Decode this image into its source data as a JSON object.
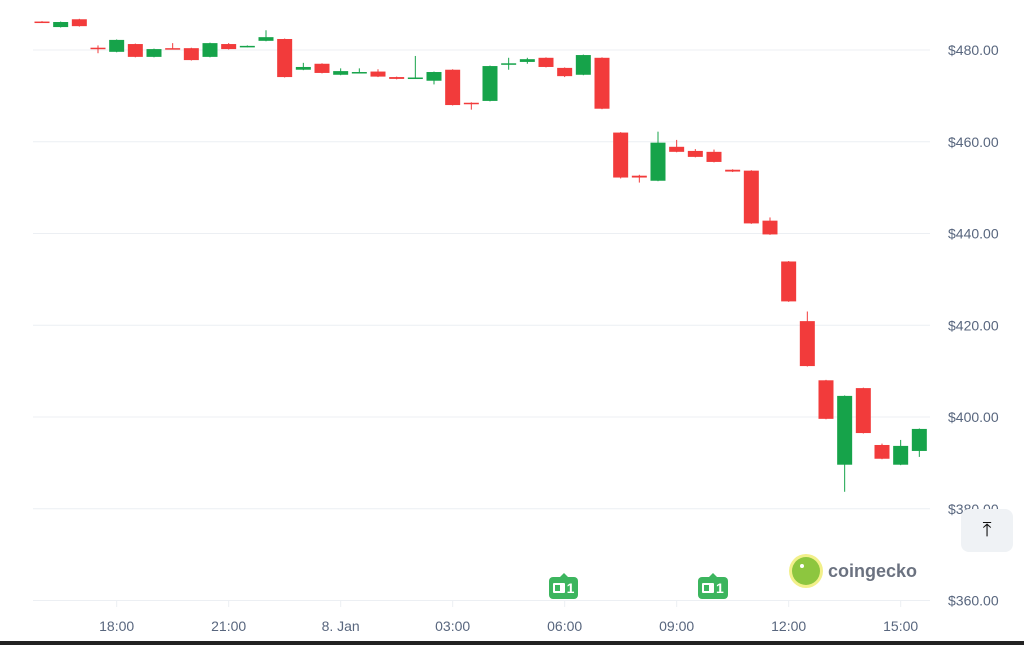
{
  "chart_data": {
    "type": "candlestick",
    "interval": "30m",
    "y_tick_labels": [
      "$480.00",
      "$460.00",
      "$440.00",
      "$420.00",
      "$400.00",
      "$380.00",
      "$360.00"
    ],
    "y_ticks": [
      480,
      460,
      440,
      420,
      400,
      380,
      360
    ],
    "ylim": [
      358,
      490
    ],
    "x_tick_labels": [
      {
        "label": "18:00",
        "time": "18:00"
      },
      {
        "label": "21:00",
        "time": "21:00"
      },
      {
        "label": "8. Jan",
        "time": "00:00"
      },
      {
        "label": "03:00",
        "time": "03:00"
      },
      {
        "label": "06:00",
        "time": "06:00"
      },
      {
        "label": "09:00",
        "time": "09:00"
      },
      {
        "label": "12:00",
        "time": "12:00"
      },
      {
        "label": "15:00",
        "time": "15:00"
      }
    ],
    "grid": true,
    "colors": {
      "up": "#16a34a",
      "down": "#f23b3b",
      "grid": "#eceff3"
    },
    "candles": [
      {
        "t": "16:00",
        "o": 486.2,
        "h": 486.3,
        "l": 485.9,
        "c": 486.0
      },
      {
        "t": "16:30",
        "o": 485.0,
        "h": 486.2,
        "l": 484.9,
        "c": 486.1
      },
      {
        "t": "17:00",
        "o": 486.7,
        "h": 486.8,
        "l": 485.1,
        "c": 485.2
      },
      {
        "t": "17:30",
        "o": 480.5,
        "h": 481.0,
        "l": 479.3,
        "c": 480.2
      },
      {
        "t": "18:00",
        "o": 479.6,
        "h": 482.3,
        "l": 479.5,
        "c": 482.2
      },
      {
        "t": "18:30",
        "o": 481.3,
        "h": 481.4,
        "l": 478.4,
        "c": 478.5
      },
      {
        "t": "19:00",
        "o": 478.5,
        "h": 480.3,
        "l": 478.4,
        "c": 480.2
      },
      {
        "t": "19:30",
        "o": 480.4,
        "h": 481.5,
        "l": 480.2,
        "c": 480.3
      },
      {
        "t": "20:00",
        "o": 480.4,
        "h": 480.5,
        "l": 477.7,
        "c": 477.8
      },
      {
        "t": "20:30",
        "o": 478.5,
        "h": 481.6,
        "l": 478.4,
        "c": 481.5
      },
      {
        "t": "21:00",
        "o": 481.3,
        "h": 481.5,
        "l": 480.1,
        "c": 480.2
      },
      {
        "t": "21:30",
        "o": 480.7,
        "h": 481.0,
        "l": 480.6,
        "c": 480.9
      },
      {
        "t": "22:00",
        "o": 482.0,
        "h": 484.3,
        "l": 481.9,
        "c": 482.8
      },
      {
        "t": "22:30",
        "o": 482.4,
        "h": 482.5,
        "l": 474.0,
        "c": 474.1
      },
      {
        "t": "23:00",
        "o": 475.7,
        "h": 477.2,
        "l": 475.6,
        "c": 476.3
      },
      {
        "t": "23:30",
        "o": 477.0,
        "h": 477.1,
        "l": 474.9,
        "c": 475.0
      },
      {
        "t": "00:00",
        "o": 474.6,
        "h": 476.0,
        "l": 474.5,
        "c": 475.4
      },
      {
        "t": "00:30",
        "o": 475.0,
        "h": 476.0,
        "l": 474.9,
        "c": 475.2
      },
      {
        "t": "01:00",
        "o": 475.3,
        "h": 475.8,
        "l": 474.1,
        "c": 474.2
      },
      {
        "t": "01:30",
        "o": 474.1,
        "h": 474.2,
        "l": 473.6,
        "c": 473.7
      },
      {
        "t": "02:00",
        "o": 473.9,
        "h": 478.7,
        "l": 473.8,
        "c": 474.0
      },
      {
        "t": "02:30",
        "o": 473.3,
        "h": 475.3,
        "l": 472.5,
        "c": 475.2
      },
      {
        "t": "03:00",
        "o": 475.7,
        "h": 475.8,
        "l": 467.9,
        "c": 468.0
      },
      {
        "t": "03:30",
        "o": 468.5,
        "h": 468.6,
        "l": 467.0,
        "c": 468.3
      },
      {
        "t": "04:00",
        "o": 468.9,
        "h": 476.6,
        "l": 468.8,
        "c": 476.5
      },
      {
        "t": "04:30",
        "o": 477.0,
        "h": 478.3,
        "l": 475.7,
        "c": 477.1
      },
      {
        "t": "05:00",
        "o": 477.4,
        "h": 478.3,
        "l": 477.0,
        "c": 478.0
      },
      {
        "t": "05:30",
        "o": 478.3,
        "h": 478.4,
        "l": 476.2,
        "c": 476.3
      },
      {
        "t": "06:00",
        "o": 476.1,
        "h": 476.2,
        "l": 474.1,
        "c": 474.3
      },
      {
        "t": "06:30",
        "o": 474.6,
        "h": 479.0,
        "l": 474.5,
        "c": 478.9
      },
      {
        "t": "07:00",
        "o": 478.3,
        "h": 478.4,
        "l": 467.1,
        "c": 467.2
      },
      {
        "t": "07:30",
        "o": 462.0,
        "h": 462.1,
        "l": 452.0,
        "c": 452.2
      },
      {
        "t": "08:00",
        "o": 452.6,
        "h": 452.8,
        "l": 451.1,
        "c": 452.2
      },
      {
        "t": "08:30",
        "o": 451.5,
        "h": 462.2,
        "l": 451.4,
        "c": 459.8
      },
      {
        "t": "09:00",
        "o": 458.9,
        "h": 460.4,
        "l": 457.7,
        "c": 457.8
      },
      {
        "t": "09:30",
        "o": 458.0,
        "h": 458.4,
        "l": 456.6,
        "c": 456.7
      },
      {
        "t": "10:00",
        "o": 457.8,
        "h": 458.3,
        "l": 455.5,
        "c": 455.6
      },
      {
        "t": "10:30",
        "o": 453.9,
        "h": 454.0,
        "l": 453.4,
        "c": 453.5
      },
      {
        "t": "11:00",
        "o": 453.7,
        "h": 453.8,
        "l": 442.1,
        "c": 442.2
      },
      {
        "t": "11:30",
        "o": 442.8,
        "h": 443.5,
        "l": 439.7,
        "c": 439.8
      },
      {
        "t": "12:00",
        "o": 433.9,
        "h": 434.0,
        "l": 425.1,
        "c": 425.2
      },
      {
        "t": "12:30",
        "o": 420.9,
        "h": 423.0,
        "l": 411.0,
        "c": 411.1
      },
      {
        "t": "13:00",
        "o": 408.0,
        "h": 408.1,
        "l": 399.5,
        "c": 399.6
      },
      {
        "t": "13:30",
        "o": 389.6,
        "h": 404.7,
        "l": 383.7,
        "c": 404.6
      },
      {
        "t": "14:00",
        "o": 406.3,
        "h": 406.4,
        "l": 396.4,
        "c": 396.5
      },
      {
        "t": "14:30",
        "o": 393.9,
        "h": 394.2,
        "l": 390.8,
        "c": 390.9
      },
      {
        "t": "15:00",
        "o": 389.6,
        "h": 395.0,
        "l": 389.5,
        "c": 393.7
      },
      {
        "t": "15:30",
        "o": 392.6,
        "h": 397.5,
        "l": 391.3,
        "c": 397.4
      }
    ]
  },
  "news_markers": [
    {
      "time": "06:00",
      "count": "1"
    },
    {
      "time": "10:00",
      "count": "1"
    }
  ],
  "brand": {
    "name": "coingecko"
  },
  "scroll_top_icon": "arrow-up-to-line-icon"
}
